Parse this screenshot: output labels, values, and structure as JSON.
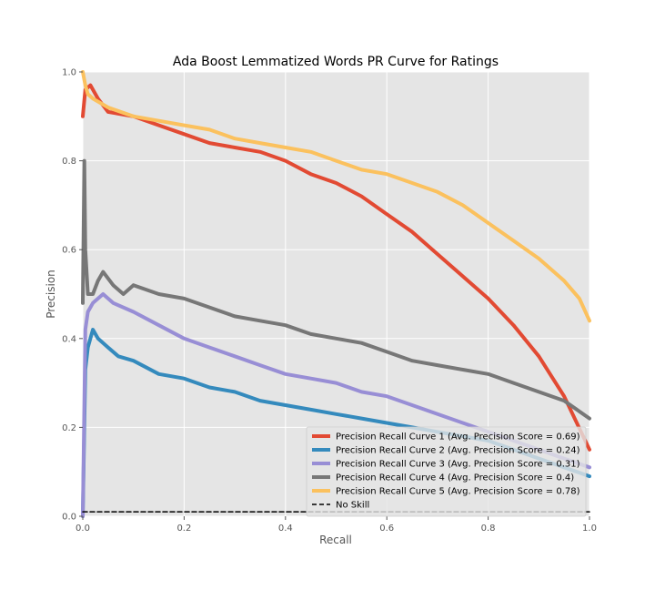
{
  "chart_data": {
    "type": "line",
    "title": "Ada Boost Lemmatized Words PR Curve for Ratings",
    "xlabel": "Recall",
    "ylabel": "Precision",
    "xlim": [
      0,
      1
    ],
    "ylim": [
      0,
      1.0
    ],
    "xticks": [
      "0.0",
      "0.2",
      "0.4",
      "0.6",
      "0.8",
      "1.0"
    ],
    "yticks": [
      "0.0",
      "0.2",
      "0.4",
      "0.6",
      "0.8",
      "1.0"
    ],
    "grid": true,
    "legend_position": "lower-right",
    "series": [
      {
        "name": "Precision Recall Curve 1 (Avg. Precision Score = 0.69)",
        "color": "#e24a33",
        "x": [
          0,
          0.005,
          0.015,
          0.03,
          0.05,
          0.1,
          0.15,
          0.2,
          0.25,
          0.3,
          0.35,
          0.4,
          0.45,
          0.5,
          0.55,
          0.6,
          0.65,
          0.7,
          0.75,
          0.8,
          0.85,
          0.9,
          0.95,
          1.0
        ],
        "y": [
          0.9,
          0.96,
          0.97,
          0.94,
          0.91,
          0.9,
          0.88,
          0.86,
          0.84,
          0.83,
          0.82,
          0.8,
          0.77,
          0.75,
          0.72,
          0.68,
          0.64,
          0.59,
          0.54,
          0.49,
          0.43,
          0.36,
          0.27,
          0.15
        ]
      },
      {
        "name": "Precision Recall Curve 2 (Avg. Precision Score = 0.24)",
        "color": "#348abd",
        "x": [
          0,
          0.005,
          0.01,
          0.02,
          0.03,
          0.05,
          0.07,
          0.1,
          0.15,
          0.2,
          0.25,
          0.3,
          0.35,
          0.4,
          0.45,
          0.5,
          0.55,
          0.6,
          0.65,
          0.7,
          0.75,
          0.8,
          0.85,
          0.9,
          0.95,
          1.0
        ],
        "y": [
          0.0,
          0.33,
          0.38,
          0.42,
          0.4,
          0.38,
          0.36,
          0.35,
          0.32,
          0.31,
          0.29,
          0.28,
          0.26,
          0.25,
          0.24,
          0.23,
          0.22,
          0.21,
          0.2,
          0.19,
          0.18,
          0.17,
          0.15,
          0.13,
          0.11,
          0.09
        ]
      },
      {
        "name": "Precision Recall Curve 3 (Avg. Precision Score = 0.31)",
        "color": "#988ed5",
        "x": [
          0,
          0.005,
          0.01,
          0.02,
          0.04,
          0.06,
          0.1,
          0.15,
          0.2,
          0.25,
          0.3,
          0.35,
          0.4,
          0.45,
          0.5,
          0.55,
          0.6,
          0.65,
          0.7,
          0.75,
          0.8,
          0.85,
          0.9,
          0.95,
          1.0
        ],
        "y": [
          0.0,
          0.42,
          0.46,
          0.48,
          0.5,
          0.48,
          0.46,
          0.43,
          0.4,
          0.38,
          0.36,
          0.34,
          0.32,
          0.31,
          0.3,
          0.28,
          0.27,
          0.25,
          0.23,
          0.21,
          0.19,
          0.17,
          0.15,
          0.13,
          0.11
        ]
      },
      {
        "name": "Precision Recall Curve 4 (Avg. Precision Score = 0.4)",
        "color": "#777777",
        "x": [
          0,
          0.003,
          0.005,
          0.01,
          0.02,
          0.03,
          0.04,
          0.06,
          0.08,
          0.1,
          0.15,
          0.2,
          0.25,
          0.3,
          0.35,
          0.4,
          0.45,
          0.5,
          0.55,
          0.6,
          0.65,
          0.7,
          0.75,
          0.8,
          0.85,
          0.9,
          0.95,
          1.0
        ],
        "y": [
          0.48,
          0.8,
          0.6,
          0.5,
          0.5,
          0.53,
          0.55,
          0.52,
          0.5,
          0.52,
          0.5,
          0.49,
          0.47,
          0.45,
          0.44,
          0.43,
          0.41,
          0.4,
          0.39,
          0.37,
          0.35,
          0.34,
          0.33,
          0.32,
          0.3,
          0.28,
          0.26,
          0.22
        ]
      },
      {
        "name": "Precision Recall Curve 5 (Avg. Precision Score = 0.78)",
        "color": "#fbc15e",
        "x": [
          0,
          0.005,
          0.01,
          0.02,
          0.05,
          0.1,
          0.15,
          0.2,
          0.25,
          0.3,
          0.35,
          0.4,
          0.45,
          0.5,
          0.55,
          0.6,
          0.65,
          0.7,
          0.75,
          0.8,
          0.85,
          0.9,
          0.95,
          0.98,
          1.0
        ],
        "y": [
          1.0,
          0.97,
          0.95,
          0.94,
          0.92,
          0.9,
          0.89,
          0.88,
          0.87,
          0.85,
          0.84,
          0.83,
          0.82,
          0.8,
          0.78,
          0.77,
          0.75,
          0.73,
          0.7,
          0.66,
          0.62,
          0.58,
          0.53,
          0.49,
          0.44
        ]
      },
      {
        "name": "No Skill",
        "color": "#000000",
        "dashed": true,
        "x": [
          0,
          1.0
        ],
        "y": [
          0.01,
          0.01
        ]
      }
    ]
  }
}
